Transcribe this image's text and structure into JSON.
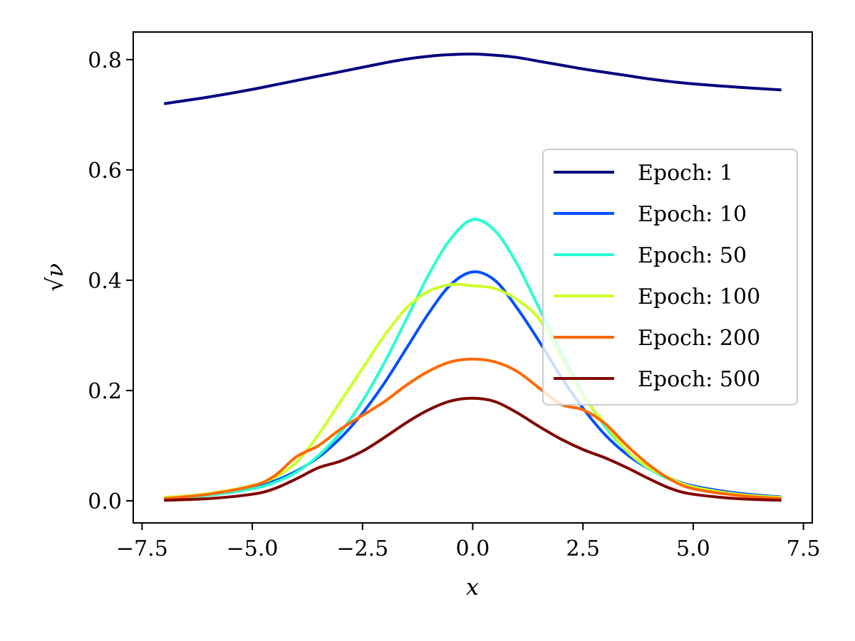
{
  "chart_data": {
    "type": "line",
    "title": "",
    "xlabel": "x",
    "ylabel": "√ν",
    "xlim": [
      -7.7,
      7.7
    ],
    "ylim": [
      -0.04,
      0.85
    ],
    "xticks": [
      -7.5,
      -5.0,
      -2.5,
      0.0,
      2.5,
      5.0,
      7.5
    ],
    "xtick_labels": [
      "−7.5",
      "−5.0",
      "−2.5",
      "0.0",
      "2.5",
      "5.0",
      "7.5"
    ],
    "yticks": [
      0.0,
      0.2,
      0.4,
      0.6,
      0.8
    ],
    "ytick_labels": [
      "0.0",
      "0.2",
      "0.4",
      "0.6",
      "0.8"
    ],
    "grid": false,
    "legend_position": "center-right",
    "x": [
      -7,
      -6,
      -5,
      -4.5,
      -4,
      -3.5,
      -3,
      -2.5,
      -2,
      -1.5,
      -1,
      -0.5,
      0,
      0.5,
      1,
      1.5,
      2,
      2.5,
      3,
      3.5,
      4,
      4.5,
      5,
      6,
      7
    ],
    "series": [
      {
        "name": "Epoch: 1",
        "color": "#000080",
        "values": [
          0.72,
          0.732,
          0.746,
          0.754,
          0.762,
          0.77,
          0.778,
          0.786,
          0.794,
          0.801,
          0.806,
          0.809,
          0.81,
          0.808,
          0.804,
          0.797,
          0.79,
          0.783,
          0.777,
          0.771,
          0.765,
          0.76,
          0.756,
          0.75,
          0.745
        ]
      },
      {
        "name": "Epoch: 10",
        "color": "#0050ff",
        "values": [
          0.005,
          0.012,
          0.025,
          0.036,
          0.054,
          0.079,
          0.114,
          0.159,
          0.214,
          0.277,
          0.34,
          0.392,
          0.415,
          0.4,
          0.35,
          0.29,
          0.225,
          0.168,
          0.12,
          0.084,
          0.058,
          0.04,
          0.027,
          0.014,
          0.007
        ]
      },
      {
        "name": "Epoch: 50",
        "color": "#29ffce",
        "values": [
          0.004,
          0.01,
          0.022,
          0.033,
          0.052,
          0.082,
          0.124,
          0.181,
          0.251,
          0.33,
          0.41,
          0.475,
          0.51,
          0.49,
          0.43,
          0.35,
          0.27,
          0.195,
          0.135,
          0.09,
          0.058,
          0.038,
          0.025,
          0.011,
          0.005
        ]
      },
      {
        "name": "Epoch: 100",
        "color": "#ceff29",
        "values": [
          0.006,
          0.013,
          0.028,
          0.042,
          0.07,
          0.12,
          0.18,
          0.24,
          0.3,
          0.35,
          0.38,
          0.392,
          0.39,
          0.385,
          0.365,
          0.33,
          0.26,
          0.19,
          0.14,
          0.09,
          0.06,
          0.04,
          0.025,
          0.012,
          0.006
        ]
      },
      {
        "name": "Epoch: 200",
        "color": "#ff6800",
        "values": [
          0.004,
          0.012,
          0.027,
          0.045,
          0.08,
          0.1,
          0.13,
          0.155,
          0.18,
          0.21,
          0.235,
          0.252,
          0.257,
          0.252,
          0.235,
          0.205,
          0.175,
          0.165,
          0.14,
          0.1,
          0.065,
          0.038,
          0.022,
          0.01,
          0.004
        ]
      },
      {
        "name": "Epoch: 500",
        "color": "#800000",
        "values": [
          0.001,
          0.004,
          0.012,
          0.022,
          0.04,
          0.06,
          0.072,
          0.09,
          0.115,
          0.142,
          0.165,
          0.181,
          0.186,
          0.18,
          0.16,
          0.135,
          0.112,
          0.093,
          0.078,
          0.06,
          0.04,
          0.022,
          0.012,
          0.004,
          0.001
        ]
      }
    ]
  }
}
